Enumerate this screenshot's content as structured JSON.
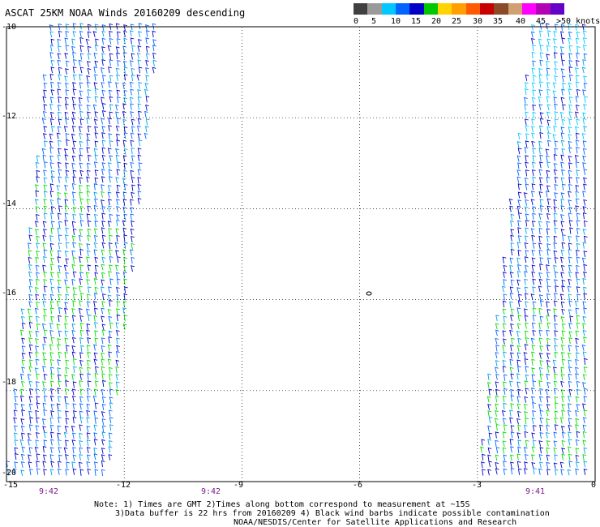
{
  "title": "ASCAT 25KM NOAA Winds 20160209 descending",
  "legend": {
    "colors": [
      "#404040",
      "#9a9a9a",
      "#00c8ff",
      "#0064ff",
      "#0000c8",
      "#00c800",
      "#ffd200",
      "#ffa000",
      "#ff5a00",
      "#c80000",
      "#8b4a2a",
      "#d0a070",
      "#ff00ff",
      "#b400b4",
      "#6400c8"
    ],
    "labels": [
      "0",
      "5",
      "10",
      "15",
      "20",
      "25",
      "30",
      "35",
      "40",
      "45",
      ">50 knots"
    ]
  },
  "axes": {
    "x_ticks": [
      "-15",
      "-12",
      "-9",
      "-6",
      "-3",
      "0"
    ],
    "y_ticks": [
      "-10",
      "-12",
      "-14",
      "-16",
      "-18",
      "-20"
    ],
    "xlim": [
      -15,
      0
    ],
    "ylim": [
      -20,
      -10
    ]
  },
  "times": [
    "9:42",
    "9:42",
    "9:41"
  ],
  "notes": [
    "Note: 1) Times are GMT 2)Times along bottom correspond to measurement at ~15S",
    "3)Data buffer is 22 hrs from 20160209 4) Black wind barbs indicate possible contamination",
    "NOAA/NESDIS/Center for Satellite Applications and Research"
  ],
  "swaths": [
    {
      "name": "west-swath",
      "edges": [
        [
          -13.9,
          -10
        ],
        [
          -11.1,
          -10
        ],
        [
          -12.4,
          -20
        ],
        [
          -15.0,
          -20
        ]
      ]
    },
    {
      "name": "east-swath",
      "edges": [
        [
          -1.6,
          -10
        ],
        [
          0,
          -10
        ],
        [
          0,
          -20
        ],
        [
          -3.0,
          -20
        ]
      ]
    }
  ]
}
